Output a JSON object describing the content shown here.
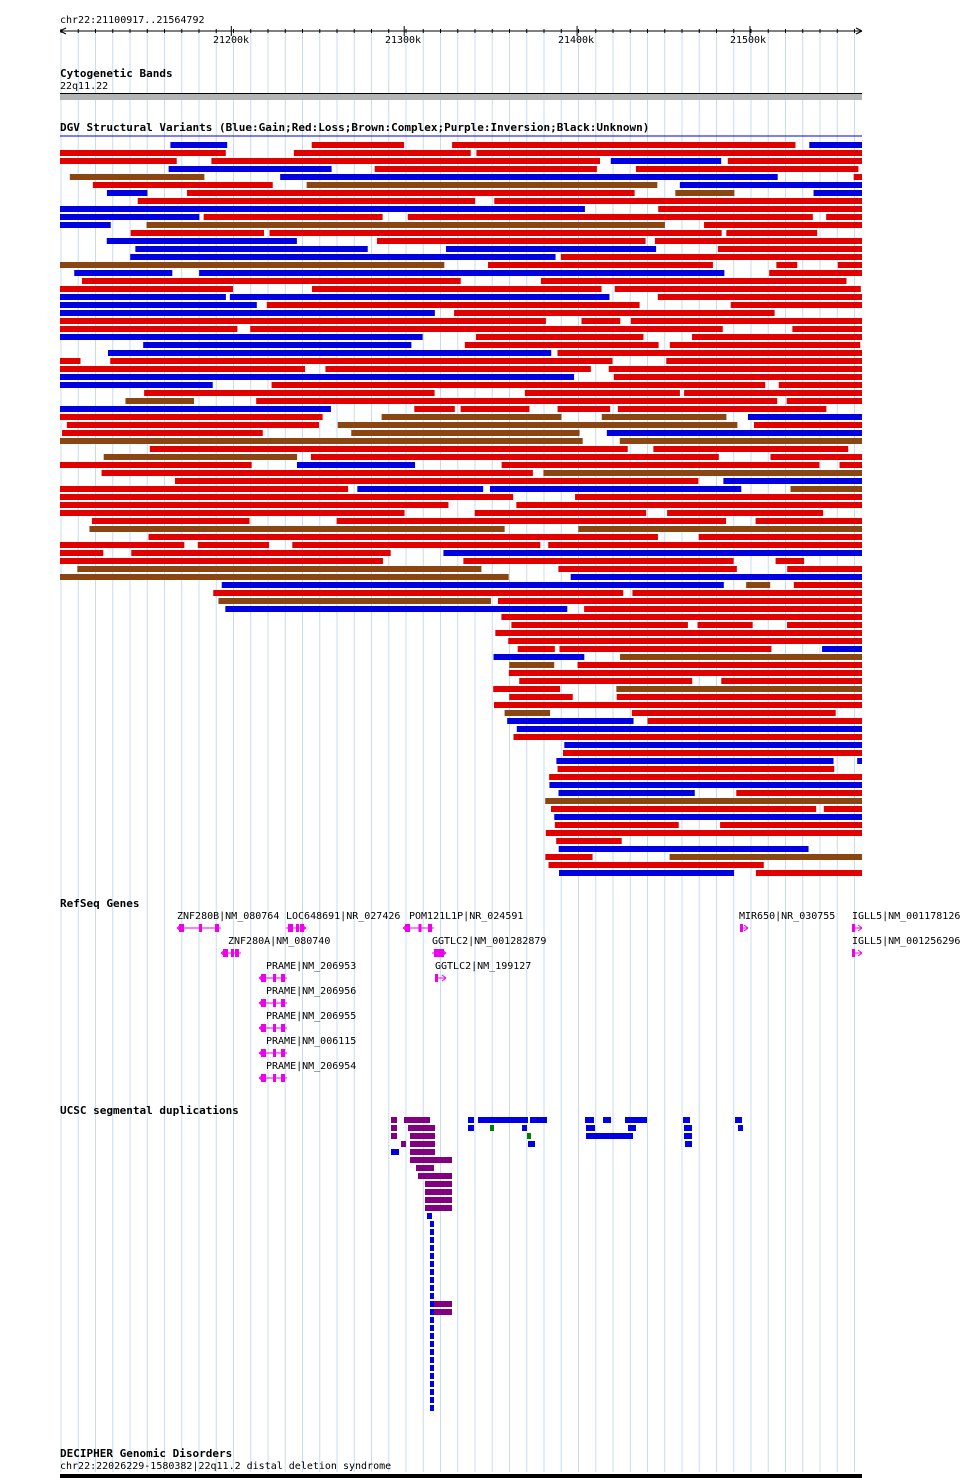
{
  "ruler": {
    "coord_label": "chr22:21100917..21564792",
    "start": 21100917,
    "end": 21564792,
    "ticks": [
      {
        "pos": 21200000,
        "label": "21200k"
      },
      {
        "pos": 21300000,
        "label": "21300k"
      },
      {
        "pos": 21400000,
        "label": "21400k"
      },
      {
        "pos": 21500000,
        "label": "21500k"
      }
    ]
  },
  "cytoband": {
    "title": "Cytogenetic Bands",
    "band_label": "22q11.22",
    "color": "#b4b4b4"
  },
  "dgv": {
    "title": "DGV Structural Variants (Blue:Gain;Red:Loss;Brown:Complex;Purple:Inversion;Black:Unknown)",
    "colors": {
      "gain": "#0000e0",
      "loss": "#e00000",
      "complex": "#8b4513",
      "inversion": "#800080",
      "unknown": "#000000"
    }
  },
  "refseq": {
    "title": "RefSeq Genes",
    "gene_color": "#ee00ee",
    "genes": [
      {
        "label": "ZNF280B|NM_080764",
        "strand": "-"
      },
      {
        "label": "LOC648691|NR_027426",
        "strand": "+"
      },
      {
        "label": "POM121L1P|NR_024591",
        "strand": "-"
      },
      {
        "label": "MIR650|NR_030755",
        "strand": "+"
      },
      {
        "label": "IGLL5|NM_001178126",
        "strand": "+"
      },
      {
        "label": "ZNF280A|NM_080740",
        "strand": "-"
      },
      {
        "label": "GGTLC2|NM_001282879",
        "strand": "+"
      },
      {
        "label": "IGLL5|NM_001256296",
        "strand": "+"
      },
      {
        "label": "PRAME|NM_206953",
        "strand": "-"
      },
      {
        "label": "GGTLC2|NM_199127",
        "strand": "+"
      },
      {
        "label": "PRAME|NM_206956",
        "strand": "-"
      },
      {
        "label": "PRAME|NM_206955",
        "strand": "-"
      },
      {
        "label": "PRAME|NM_006115",
        "strand": "-"
      },
      {
        "label": "PRAME|NM_206954",
        "strand": "-"
      }
    ]
  },
  "segdups": {
    "title": "UCSC segmental duplications",
    "colors": {
      "blue": "#0000e0",
      "purple": "#800080",
      "green": "#008000"
    }
  },
  "decipher": {
    "title": "DECIPHER Genomic Disorders",
    "item_label": "chr22:22026229-1580382|22q11.2 distal deletion syndrome"
  }
}
